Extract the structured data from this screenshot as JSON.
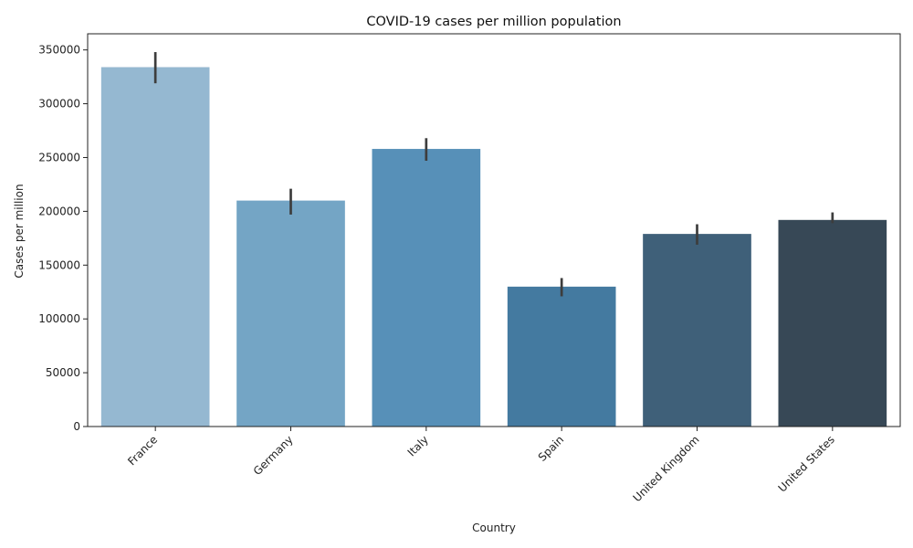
{
  "chart_data": {
    "type": "bar",
    "title": "COVID-19 cases per million population",
    "xlabel": "Country",
    "ylabel": "Cases per million",
    "categories": [
      "France",
      "Germany",
      "Italy",
      "Spain",
      "United Kingdom",
      "United States"
    ],
    "values": [
      334000,
      210000,
      258000,
      130000,
      179000,
      192000
    ],
    "error_low": [
      319000,
      197000,
      247000,
      121000,
      169000,
      189000
    ],
    "error_high": [
      348000,
      221000,
      268000,
      138000,
      188000,
      199000
    ],
    "colors": [
      "#95b8d1",
      "#74a5c5",
      "#5790b8",
      "#447aa0",
      "#3f6079",
      "#374856"
    ],
    "error_color": "#3d3d3d",
    "ylim": [
      0,
      365000
    ],
    "yticks": [
      0,
      50000,
      100000,
      150000,
      200000,
      250000,
      300000,
      350000
    ],
    "ytick_labels": [
      "0",
      "50000",
      "100000",
      "150000",
      "200000",
      "250000",
      "300000",
      "350000"
    ],
    "xtick_rotation": 45,
    "grid": false,
    "legend": "none"
  }
}
